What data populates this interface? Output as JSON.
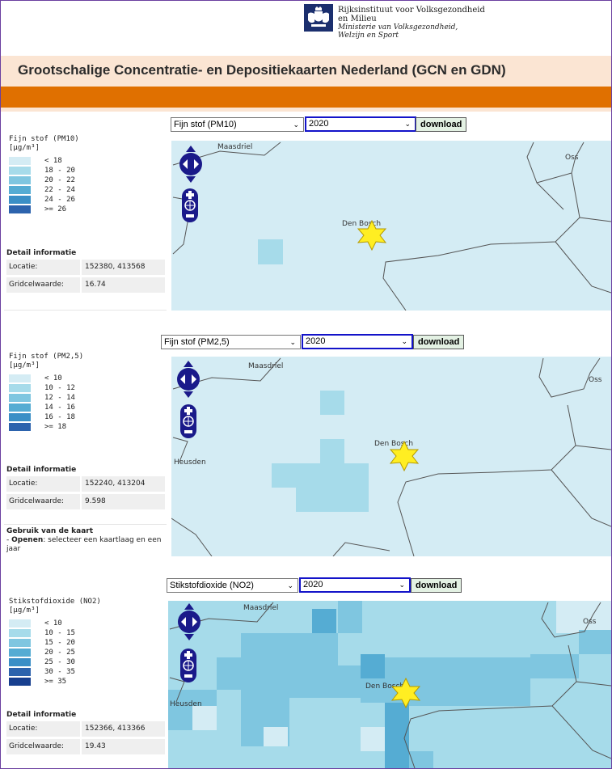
{
  "header": {
    "org_line1": "Rijksinstituut voor Volksgezondheid",
    "org_line2": "en Milieu",
    "org_line3": "Ministerie van Volksgezondheid,",
    "org_line4": "Welzijn en Sport",
    "logo_icon": "rijkswapen-icon",
    "title": "Grootschalige Concentratie- en Depositiekaarten Nederland (GCN en GDN)"
  },
  "colors": {
    "accent_orange": "#e07000",
    "title_band": "#fbe5d3",
    "map_background": "#d4ecf4",
    "marker": "#ffee22",
    "select_focus": "#1313c9"
  },
  "panels": [
    {
      "component": "Fijn stof (PM10)",
      "year": "2020",
      "download_label": "download",
      "legend_title": "Fijn stof (PM10)",
      "legend_unit": "[µg/m³]",
      "legend": [
        {
          "label": "< 18",
          "color": "#d4ecf4"
        },
        {
          "label": "18 - 20",
          "color": "#a6dbea"
        },
        {
          "label": "20 - 22",
          "color": "#7fc6e0"
        },
        {
          "label": "22 - 24",
          "color": "#55acd3"
        },
        {
          "label": "24 - 26",
          "color": "#3a8fc6"
        },
        {
          "label": ">= 26",
          "color": "#2c63ad"
        }
      ],
      "places": [
        "Maasdriel",
        "Oss",
        "Den Bosch"
      ],
      "detail_title": "Detail informatie",
      "location_label": "Locatie:",
      "location_value": "152380, 413568",
      "grid_label": "Gridcelwaarde:",
      "grid_value": "16.74"
    },
    {
      "component": "Fijn stof (PM2,5)",
      "year": "2020",
      "download_label": "download",
      "legend_title": "Fijn stof (PM2,5)",
      "legend_unit": "[µg/m³]",
      "legend": [
        {
          "label": "< 10",
          "color": "#d4ecf4"
        },
        {
          "label": "10 - 12",
          "color": "#a6dbea"
        },
        {
          "label": "12 - 14",
          "color": "#7fc6e0"
        },
        {
          "label": "14 - 16",
          "color": "#55acd3"
        },
        {
          "label": "16 - 18",
          "color": "#3a8fc6"
        },
        {
          "label": ">= 18",
          "color": "#2c63ad"
        }
      ],
      "places": [
        "Maasdriel",
        "Oss",
        "Den Bosch",
        "Heusden"
      ],
      "detail_title": "Detail informatie",
      "location_label": "Locatie:",
      "location_value": "152240, 413204",
      "grid_label": "Gridcelwaarde:",
      "grid_value": "9.598"
    },
    {
      "component": "Stikstofdioxide (NO2)",
      "year": "2020",
      "download_label": "download",
      "legend_title": "Stikstofdioxide (NO2)",
      "legend_unit": "[µg/m³]",
      "legend": [
        {
          "label": "< 10",
          "color": "#d4ecf4"
        },
        {
          "label": "10 - 15",
          "color": "#a6dbea"
        },
        {
          "label": "15 - 20",
          "color": "#7fc6e0"
        },
        {
          "label": "20 - 25",
          "color": "#55acd3"
        },
        {
          "label": "25 - 30",
          "color": "#3a8fc6"
        },
        {
          "label": "30 - 35",
          "color": "#2c63ad"
        },
        {
          "label": ">= 35",
          "color": "#173f8f"
        }
      ],
      "places": [
        "Maasdriel",
        "Oss",
        "Den Bosch",
        "Heusden"
      ],
      "detail_title": "Detail informatie",
      "location_label": "Locatie:",
      "location_value": "152366, 413366",
      "grid_label": "Gridcelwaarde:",
      "grid_value": "19.43"
    }
  ],
  "usage": {
    "title": "Gebruik van de kaart",
    "bullet_prefix": "- ",
    "open_label": "Openen",
    "open_text": ": selecteer een kaartlaag en een jaar"
  },
  "icons": {
    "pan": "pan-arrows-icon",
    "zoom_in": "zoom-in-icon",
    "zoom_world": "zoom-world-icon",
    "zoom_out": "zoom-out-icon",
    "marker": "star-marker-icon",
    "dropdown": "chevron-down-icon"
  }
}
